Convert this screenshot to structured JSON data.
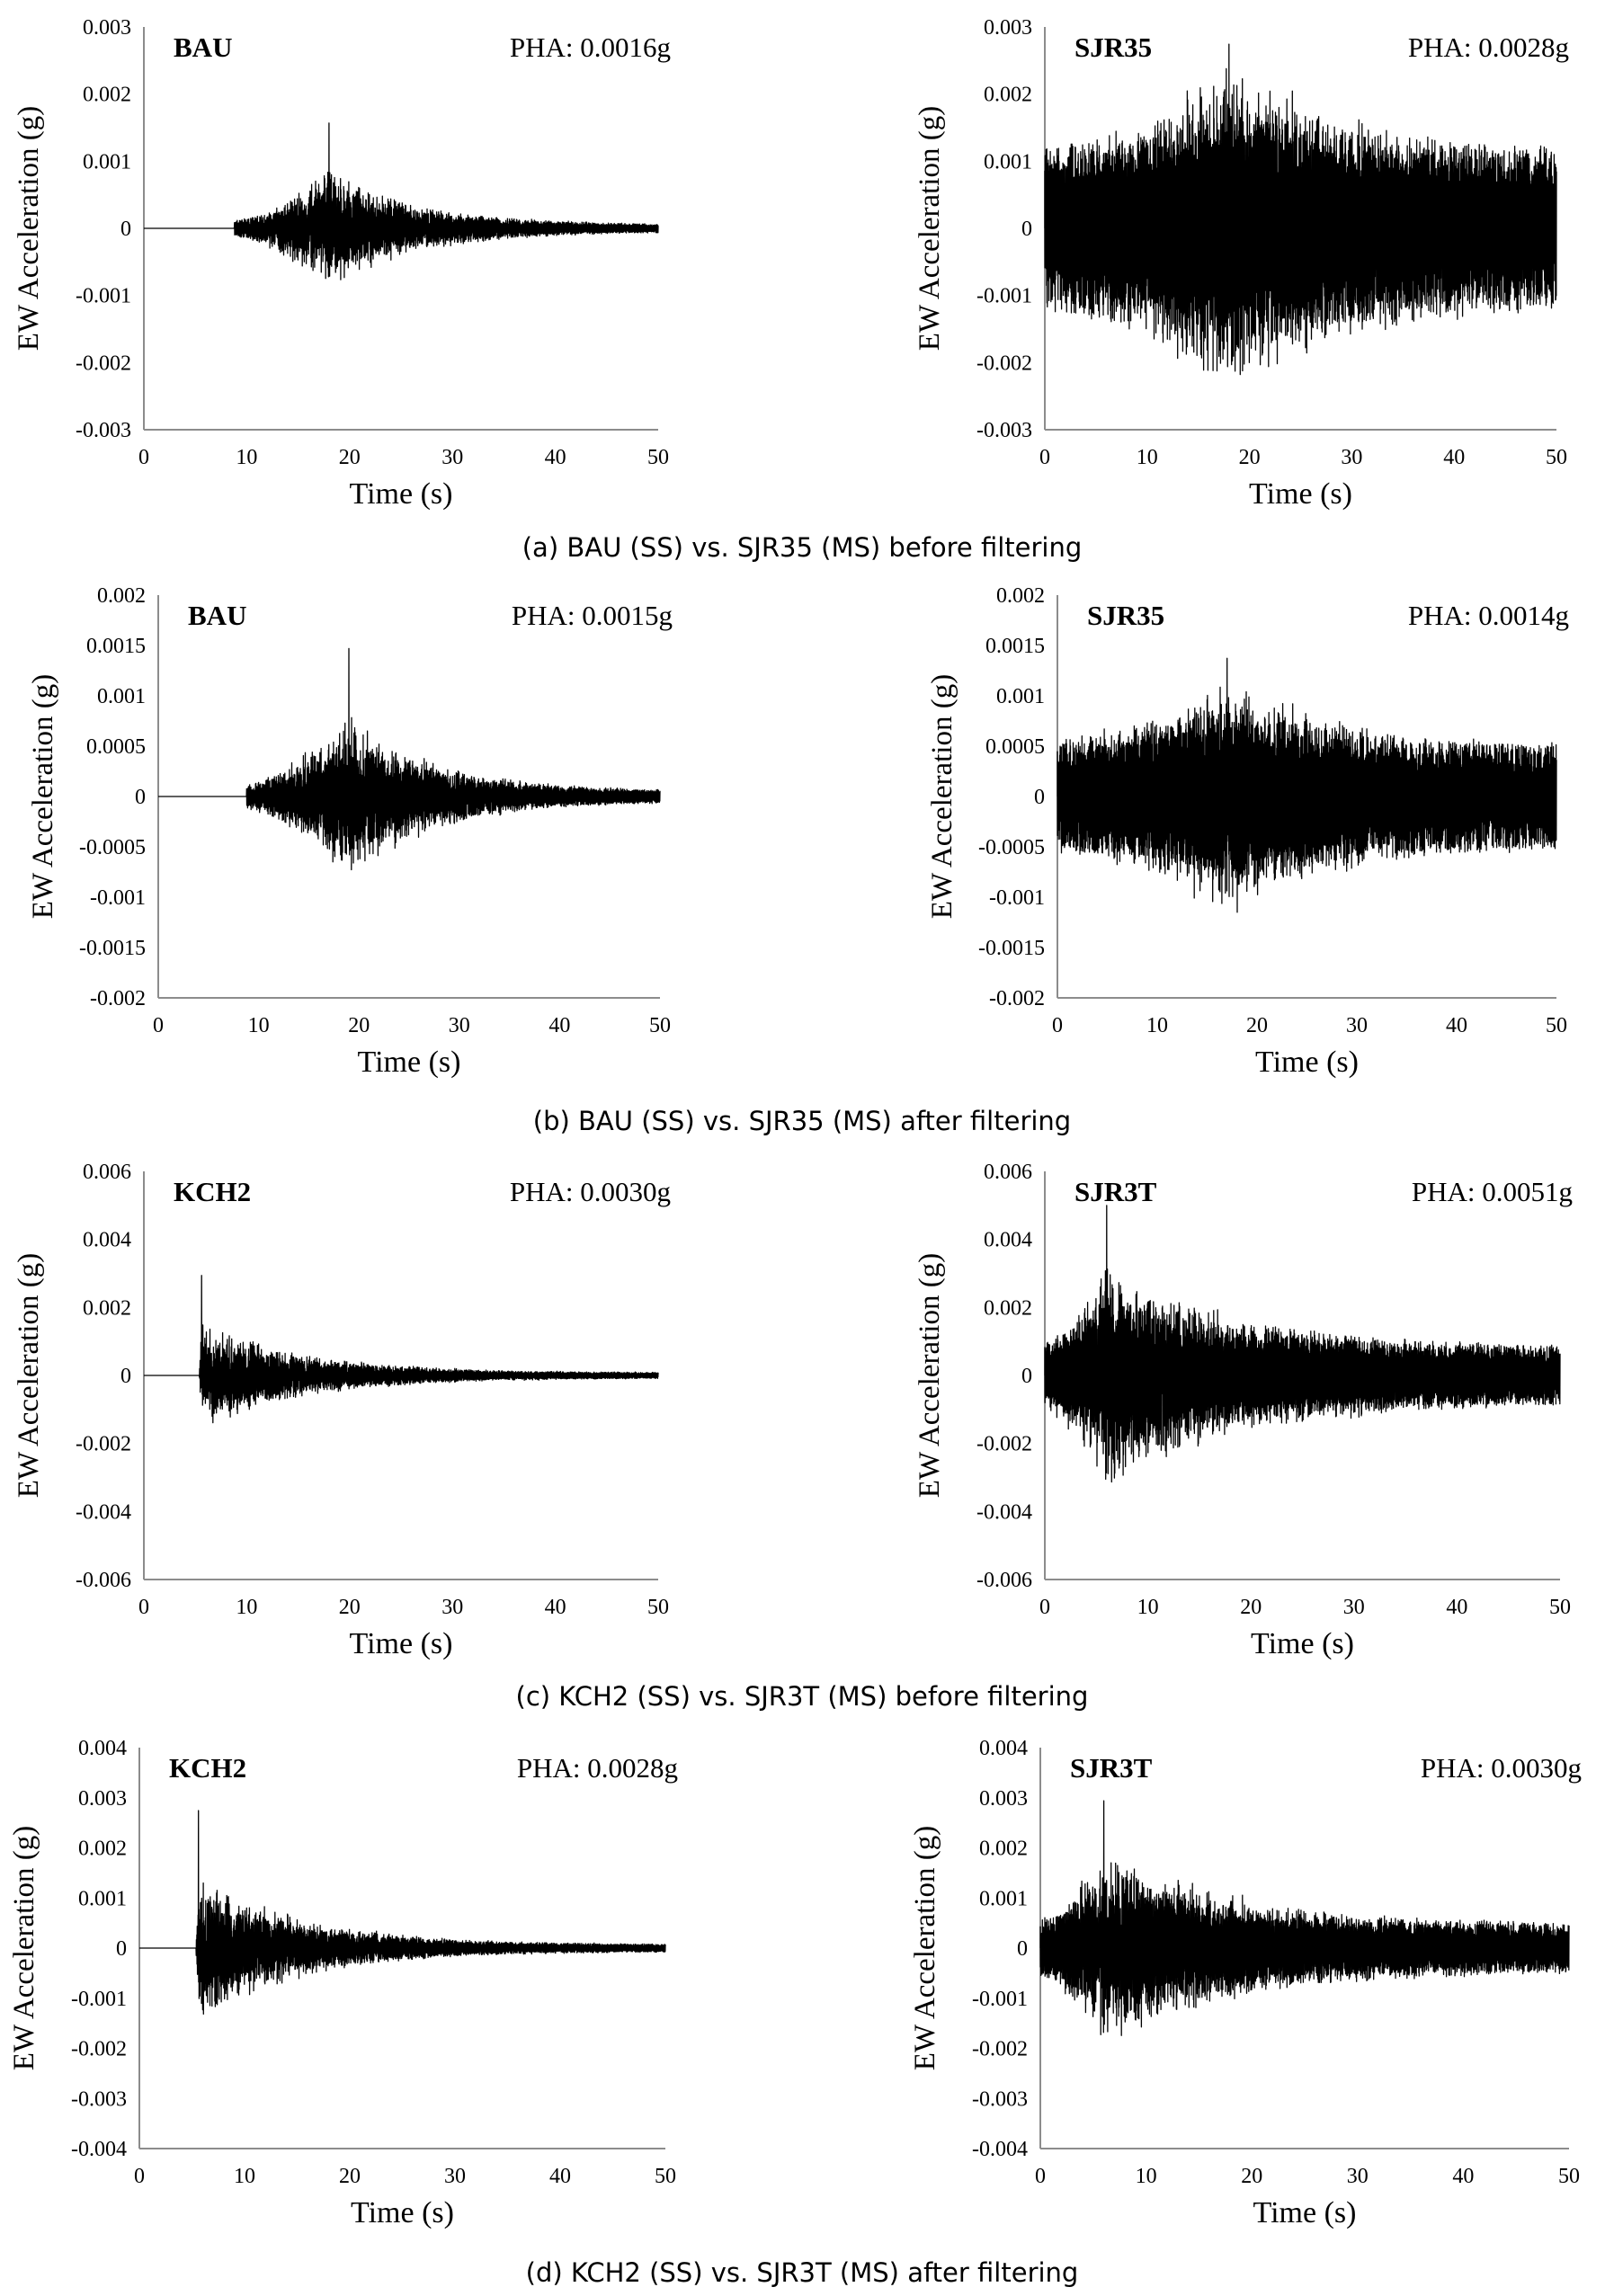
{
  "captions": [
    "(a) BAU (SS) vs. SJR35 (MS) before filtering",
    "(b) BAU (SS) vs. SJR35 (MS) after filtering",
    "(c) KCH2 (SS) vs. SJR3T (MS) before filtering",
    "(d) KCH2 (SS) vs. SJR3T (MS) after filtering"
  ],
  "chart_data": [
    {
      "type": "line",
      "station": "BAU",
      "pha": "PHA: 0.0016g",
      "xlabel": "Time (s)",
      "ylabel": "EW Acceleration (g)",
      "xlim": [
        0,
        50
      ],
      "ylim": [
        -0.003,
        0.003
      ],
      "xticks": [
        "0",
        "10",
        "20",
        "30",
        "40",
        "50"
      ],
      "yticks": [
        "0.003",
        "0.002",
        "0.001",
        "0",
        "-0.001",
        "-0.002",
        "-0.003"
      ],
      "onset": 8.8,
      "peak_time": 18,
      "decay": 9,
      "peak_value": 0.0016,
      "noise": 5e-05,
      "seed": 11
    },
    {
      "type": "line",
      "station": "SJR35",
      "pha": "PHA: 0.0028g",
      "xlabel": "Time (s)",
      "ylabel": "EW Acceleration (g)",
      "xlim": [
        0,
        50
      ],
      "ylim": [
        -0.003,
        0.003
      ],
      "xticks": [
        "0",
        "10",
        "20",
        "30",
        "40",
        "50"
      ],
      "yticks": [
        "0.003",
        "0.002",
        "0.001",
        "0",
        "-0.001",
        "-0.002",
        "-0.003"
      ],
      "onset": 0,
      "peak_time": 18,
      "decay": 14,
      "peak_value": 0.0028,
      "noise": 0.0011,
      "seed": 23
    },
    {
      "type": "line",
      "station": "BAU",
      "pha": "PHA: 0.0015g",
      "xlabel": "Time (s)",
      "ylabel": "EW Acceleration (g)",
      "xlim": [
        0,
        50
      ],
      "ylim": [
        -0.002,
        0.002
      ],
      "xticks": [
        "0",
        "10",
        "20",
        "30",
        "40",
        "50"
      ],
      "yticks": [
        "0.002",
        "0.0015",
        "0.001",
        "0.0005",
        "0",
        "-0.0005",
        "-0.001",
        "-0.0015",
        "-0.002"
      ],
      "onset": 8.8,
      "peak_time": 19,
      "decay": 9,
      "peak_value": 0.0015,
      "noise": 5e-05,
      "seed": 37
    },
    {
      "type": "line",
      "station": "SJR35",
      "pha": "PHA: 0.0014g",
      "xlabel": "Time (s)",
      "ylabel": "EW Acceleration (g)",
      "xlim": [
        0,
        50
      ],
      "ylim": [
        -0.002,
        0.002
      ],
      "xticks": [
        "0",
        "10",
        "20",
        "30",
        "40",
        "50"
      ],
      "yticks": [
        "0.002",
        "0.0015",
        "0.001",
        "0.0005",
        "0",
        "-0.0005",
        "-0.001",
        "-0.0015",
        "-0.002"
      ],
      "onset": 0,
      "peak_time": 17,
      "decay": 12,
      "peak_value": 0.0014,
      "noise": 0.0005,
      "seed": 41
    },
    {
      "type": "line",
      "station": "KCH2",
      "pha": "PHA: 0.0030g",
      "xlabel": "Time (s)",
      "ylabel": "EW Acceleration (g)",
      "xlim": [
        0,
        50
      ],
      "ylim": [
        -0.006,
        0.006
      ],
      "xticks": [
        "0",
        "10",
        "20",
        "30",
        "40",
        "50"
      ],
      "yticks": [
        "0.006",
        "0.004",
        "0.002",
        "0",
        "-0.002",
        "-0.004",
        "-0.006"
      ],
      "onset": 5.4,
      "peak_time": 5.6,
      "decay": 10,
      "peak_value": 0.003,
      "noise": 8e-05,
      "seed": 53
    },
    {
      "type": "line",
      "station": "SJR3T",
      "pha": "PHA: 0.0051g",
      "xlabel": "Time (s)",
      "ylabel": "EW Acceleration (g)",
      "xlim": [
        0,
        50
      ],
      "ylim": [
        -0.006,
        0.006
      ],
      "xticks": [
        "0",
        "10",
        "20",
        "30",
        "40",
        "50"
      ],
      "yticks": [
        "0.006",
        "0.004",
        "0.002",
        "0",
        "-0.002",
        "-0.004",
        "-0.006"
      ],
      "onset": 0,
      "peak_time": 6,
      "decay": 14,
      "peak_value": 0.0051,
      "noise": 0.0008,
      "seed": 67
    },
    {
      "type": "line",
      "station": "KCH2",
      "pha": "PHA: 0.0028g",
      "xlabel": "Time (s)",
      "ylabel": "EW Acceleration (g)",
      "xlim": [
        0,
        50
      ],
      "ylim": [
        -0.004,
        0.004
      ],
      "xticks": [
        "0",
        "10",
        "20",
        "30",
        "40",
        "50"
      ],
      "yticks": [
        "0.004",
        "0.003",
        "0.002",
        "0.001",
        "0",
        "-0.001",
        "-0.002",
        "-0.003",
        "-0.004"
      ],
      "onset": 5.4,
      "peak_time": 5.6,
      "decay": 10,
      "peak_value": 0.0028,
      "noise": 7e-05,
      "seed": 71
    },
    {
      "type": "line",
      "station": "SJR3T",
      "pha": "PHA: 0.0030g",
      "xlabel": "Time (s)",
      "ylabel": "EW Acceleration (g)",
      "xlim": [
        0,
        50
      ],
      "ylim": [
        -0.004,
        0.004
      ],
      "xticks": [
        "0",
        "10",
        "20",
        "30",
        "40",
        "50"
      ],
      "yticks": [
        "0.004",
        "0.003",
        "0.002",
        "0.001",
        "0",
        "-0.001",
        "-0.002",
        "-0.003",
        "-0.004"
      ],
      "onset": 0,
      "peak_time": 6,
      "decay": 14,
      "peak_value": 0.003,
      "noise": 0.00045,
      "seed": 83
    }
  ]
}
